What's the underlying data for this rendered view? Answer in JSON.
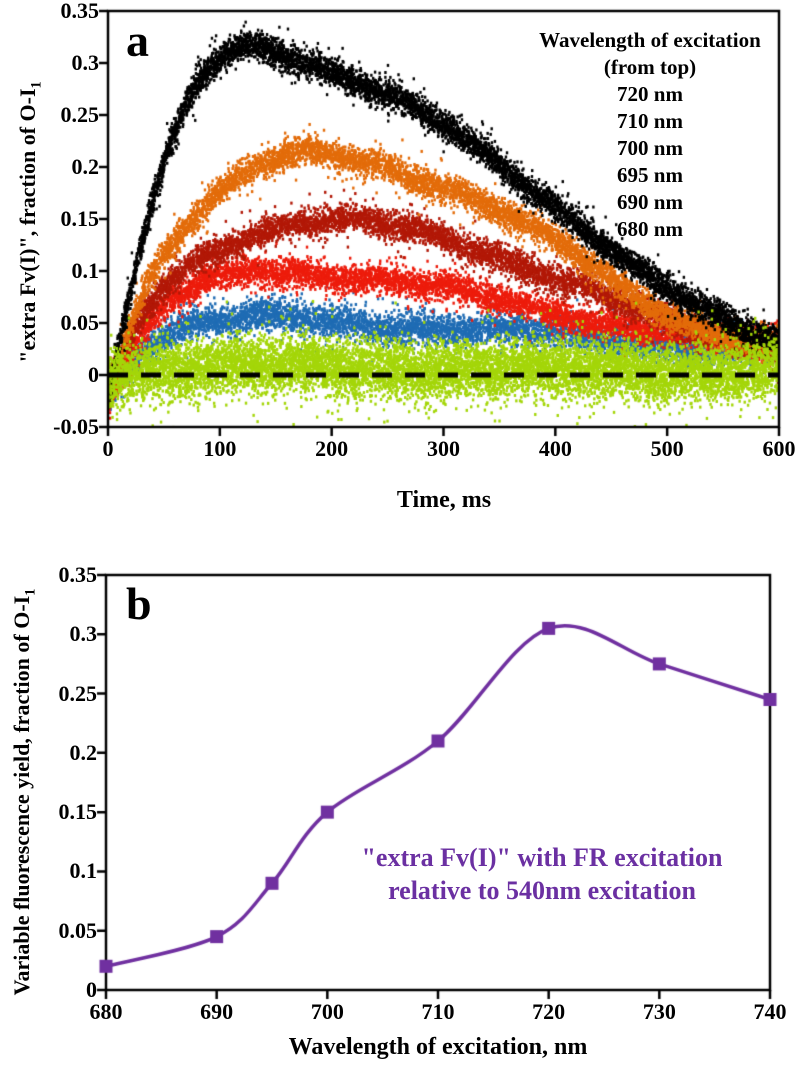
{
  "chart_data": [
    {
      "type": "scatter",
      "panel_label": "a",
      "xlabel": "Time, ms",
      "ylabel_main": "\"extra Fv(I)\", fraction of O-I",
      "ylabel_sub": "1",
      "xlim": [
        0,
        600
      ],
      "ylim": [
        -0.05,
        0.35
      ],
      "xticks": [
        "0",
        "100",
        "200",
        "300",
        "400",
        "500",
        "600"
      ],
      "yticks": [
        "0.35",
        "0.3",
        "0.25",
        "0.2",
        "0.15",
        "0.1",
        "0.05",
        "0",
        "-0.05"
      ],
      "grid": false,
      "legend_position": "top-right",
      "legend": {
        "title_lines": [
          "Wavelength of excitation",
          "(from top)"
        ],
        "items": [
          "720 nm",
          "710 nm",
          "700 nm",
          "695 nm",
          "690 nm",
          "680 nm"
        ]
      },
      "zero_line": {
        "y": 0,
        "style": "dashed",
        "color": "#000000"
      },
      "series": [
        {
          "name": "720 nm",
          "color": "#000000",
          "z": 5,
          "n": 7000,
          "noise": 0.01,
          "keypoints": [
            [
              0,
              -0.025
            ],
            [
              5,
              0.0
            ],
            [
              12,
              0.04
            ],
            [
              20,
              0.08
            ],
            [
              30,
              0.125
            ],
            [
              40,
              0.165
            ],
            [
              50,
              0.2
            ],
            [
              60,
              0.23
            ],
            [
              70,
              0.257
            ],
            [
              80,
              0.277
            ],
            [
              90,
              0.293
            ],
            [
              100,
              0.305
            ],
            [
              115,
              0.314
            ],
            [
              130,
              0.317
            ],
            [
              145,
              0.314
            ],
            [
              160,
              0.309
            ],
            [
              180,
              0.301
            ],
            [
              200,
              0.292
            ],
            [
              225,
              0.281
            ],
            [
              250,
              0.268
            ],
            [
              275,
              0.254
            ],
            [
              300,
              0.238
            ],
            [
              325,
              0.221
            ],
            [
              350,
              0.203
            ],
            [
              375,
              0.184
            ],
            [
              400,
              0.164
            ],
            [
              425,
              0.143
            ],
            [
              450,
              0.121
            ],
            [
              475,
              0.1
            ],
            [
              500,
              0.082
            ],
            [
              525,
              0.065
            ],
            [
              550,
              0.052
            ],
            [
              575,
              0.042
            ],
            [
              600,
              0.035
            ]
          ]
        },
        {
          "name": "710 nm",
          "color": "#E36C0A",
          "z": 4,
          "n": 6000,
          "noise": 0.01,
          "keypoints": [
            [
              0,
              -0.015
            ],
            [
              6,
              0.005
            ],
            [
              15,
              0.035
            ],
            [
              25,
              0.065
            ],
            [
              35,
              0.09
            ],
            [
              50,
              0.118
            ],
            [
              65,
              0.14
            ],
            [
              80,
              0.158
            ],
            [
              95,
              0.172
            ],
            [
              110,
              0.184
            ],
            [
              125,
              0.194
            ],
            [
              140,
              0.202
            ],
            [
              155,
              0.208
            ],
            [
              170,
              0.211
            ],
            [
              185,
              0.212
            ],
            [
              200,
              0.211
            ],
            [
              220,
              0.208
            ],
            [
              240,
              0.203
            ],
            [
              260,
              0.197
            ],
            [
              280,
              0.19
            ],
            [
              300,
              0.182
            ],
            [
              320,
              0.173
            ],
            [
              340,
              0.163
            ],
            [
              360,
              0.152
            ],
            [
              380,
              0.14
            ],
            [
              400,
              0.127
            ],
            [
              420,
              0.113
            ],
            [
              440,
              0.099
            ],
            [
              460,
              0.085
            ],
            [
              480,
              0.072
            ],
            [
              500,
              0.06
            ],
            [
              520,
              0.05
            ],
            [
              540,
              0.042
            ],
            [
              560,
              0.036
            ],
            [
              580,
              0.031
            ],
            [
              600,
              0.028
            ]
          ]
        },
        {
          "name": "700 nm",
          "color": "#B21807",
          "z": 3,
          "n": 6000,
          "noise": 0.01,
          "keypoints": [
            [
              0,
              -0.015
            ],
            [
              6,
              0.0
            ],
            [
              15,
              0.022
            ],
            [
              25,
              0.045
            ],
            [
              35,
              0.063
            ],
            [
              50,
              0.083
            ],
            [
              65,
              0.098
            ],
            [
              80,
              0.11
            ],
            [
              95,
              0.12
            ],
            [
              110,
              0.128
            ],
            [
              125,
              0.135
            ],
            [
              140,
              0.14
            ],
            [
              155,
              0.144
            ],
            [
              170,
              0.147
            ],
            [
              190,
              0.148
            ],
            [
              210,
              0.148
            ],
            [
              230,
              0.146
            ],
            [
              250,
              0.143
            ],
            [
              275,
              0.138
            ],
            [
              300,
              0.132
            ],
            [
              325,
              0.124
            ],
            [
              350,
              0.115
            ],
            [
              375,
              0.105
            ],
            [
              400,
              0.094
            ],
            [
              425,
              0.083
            ],
            [
              450,
              0.072
            ],
            [
              475,
              0.061
            ],
            [
              500,
              0.051
            ],
            [
              525,
              0.043
            ],
            [
              550,
              0.037
            ],
            [
              575,
              0.032
            ],
            [
              600,
              0.029
            ]
          ]
        },
        {
          "name": "695 nm",
          "color": "#ED1C0C",
          "z": 2,
          "n": 6000,
          "noise": 0.01,
          "keypoints": [
            [
              0,
              -0.022
            ],
            [
              6,
              -0.012
            ],
            [
              14,
              0.005
            ],
            [
              22,
              0.022
            ],
            [
              32,
              0.04
            ],
            [
              45,
              0.057
            ],
            [
              58,
              0.07
            ],
            [
              72,
              0.08
            ],
            [
              86,
              0.088
            ],
            [
              100,
              0.093
            ],
            [
              115,
              0.097
            ],
            [
              130,
              0.099
            ],
            [
              145,
              0.1
            ],
            [
              165,
              0.1
            ],
            [
              190,
              0.098
            ],
            [
              215,
              0.095
            ],
            [
              240,
              0.092
            ],
            [
              265,
              0.088
            ],
            [
              290,
              0.084
            ],
            [
              315,
              0.079
            ],
            [
              340,
              0.074
            ],
            [
              365,
              0.069
            ],
            [
              390,
              0.063
            ],
            [
              415,
              0.058
            ],
            [
              440,
              0.052
            ],
            [
              465,
              0.047
            ],
            [
              490,
              0.042
            ],
            [
              515,
              0.038
            ],
            [
              540,
              0.034
            ],
            [
              570,
              0.03
            ],
            [
              600,
              0.027
            ]
          ]
        },
        {
          "name": "690 nm",
          "color": "#1F6CB4",
          "z": 1,
          "n": 6000,
          "noise": 0.011,
          "keypoints": [
            [
              0,
              -0.02
            ],
            [
              6,
              -0.01
            ],
            [
              14,
              0.004
            ],
            [
              22,
              0.016
            ],
            [
              32,
              0.027
            ],
            [
              45,
              0.036
            ],
            [
              58,
              0.043
            ],
            [
              72,
              0.048
            ],
            [
              86,
              0.051
            ],
            [
              100,
              0.053
            ],
            [
              120,
              0.054
            ],
            [
              145,
              0.054
            ],
            [
              170,
              0.053
            ],
            [
              200,
              0.051
            ],
            [
              230,
              0.049
            ],
            [
              260,
              0.048
            ],
            [
              290,
              0.046
            ],
            [
              320,
              0.044
            ],
            [
              350,
              0.042
            ],
            [
              380,
              0.04
            ],
            [
              410,
              0.038
            ],
            [
              440,
              0.035
            ],
            [
              470,
              0.032
            ],
            [
              500,
              0.029
            ],
            [
              530,
              0.027
            ],
            [
              560,
              0.025
            ],
            [
              600,
              0.023
            ]
          ]
        },
        {
          "name": "680 nm",
          "color": "#A4D609",
          "z": 6,
          "n": 10000,
          "noise": 0.02,
          "keypoints": [
            [
              0,
              -0.002
            ],
            [
              10,
              0.002
            ],
            [
              25,
              0.005
            ],
            [
              50,
              0.007
            ],
            [
              100,
              0.008
            ],
            [
              150,
              0.008
            ],
            [
              200,
              0.007
            ],
            [
              250,
              0.007
            ],
            [
              300,
              0.006
            ],
            [
              350,
              0.006
            ],
            [
              400,
              0.005
            ],
            [
              450,
              0.005
            ],
            [
              500,
              0.005
            ],
            [
              550,
              0.004
            ],
            [
              600,
              0.004
            ]
          ]
        }
      ]
    },
    {
      "type": "line",
      "panel_label": "b",
      "xlabel": "Wavelength of excitation, nm",
      "ylabel_main": "Variable fluorescence yield, fraction of O-I",
      "ylabel_sub": "1",
      "x": [
        680,
        690,
        695,
        700,
        710,
        720,
        730,
        740
      ],
      "y": [
        0.02,
        0.045,
        0.09,
        0.15,
        0.21,
        0.305,
        0.275,
        0.245
      ],
      "color": "#7030A0",
      "marker": "square",
      "line_smooth": true,
      "xlim": [
        680,
        740
      ],
      "ylim": [
        0,
        0.35
      ],
      "xticks": [
        "680",
        "690",
        "700",
        "710",
        "720",
        "730",
        "740"
      ],
      "yticks": [
        "0.35",
        "0.3",
        "0.25",
        "0.2",
        "0.15",
        "0.1",
        "0.05",
        "0"
      ],
      "grid": false,
      "annotation_lines": [
        "\"extra Fv(I)\" with FR excitation",
        "relative to 540nm excitation"
      ],
      "annotation_color": "#6B30A2"
    }
  ]
}
